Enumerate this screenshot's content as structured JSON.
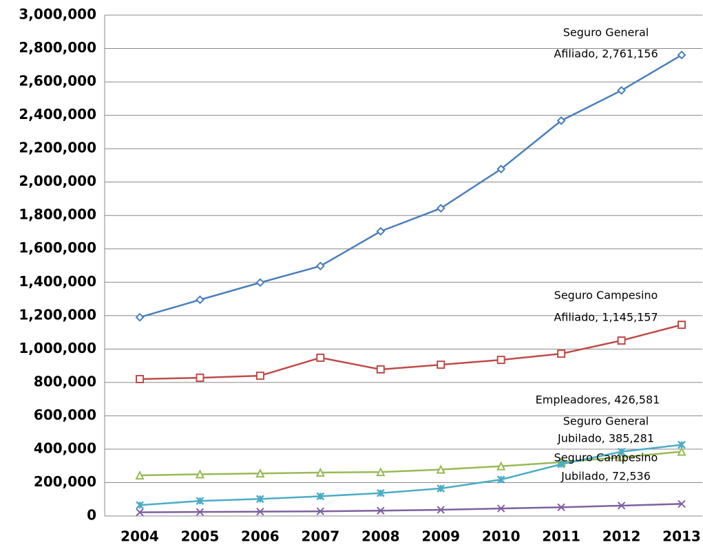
{
  "chart_data": {
    "type": "line",
    "categories": [
      "2004",
      "2005",
      "2006",
      "2007",
      "2008",
      "2009",
      "2010",
      "2011",
      "2012",
      "2013"
    ],
    "series": [
      {
        "color": "#4a7ebb",
        "marker": "diamond",
        "values": [
          1190000,
          1295000,
          1398000,
          1497000,
          1705000,
          1843000,
          2078000,
          2368000,
          2549000,
          2761156
        ]
      },
      {
        "color": "#be4b48",
        "marker": "square",
        "values": [
          820000,
          828000,
          840000,
          948000,
          878000,
          906000,
          935000,
          972000,
          1051000,
          1145157
        ]
      },
      {
        "color": "#98b954",
        "marker": "triangle",
        "values": [
          243000,
          250000,
          255000,
          260000,
          263000,
          278000,
          298000,
          322000,
          352000,
          385281
        ]
      },
      {
        "color": "#4bacc6",
        "marker": "star",
        "values": [
          65000,
          90000,
          102000,
          118000,
          137000,
          165000,
          218000,
          310000,
          385000,
          426581
        ]
      },
      {
        "color": "#7d60a0",
        "marker": "x",
        "values": [
          22000,
          24000,
          26000,
          28000,
          32000,
          37000,
          45000,
          52000,
          62000,
          72536
        ]
      }
    ],
    "annotations": [
      {
        "text": [
          "Seguro General",
          "Afiliado, 2,761,156"
        ]
      },
      {
        "text": [
          "Seguro Campesino",
          "Afiliado, 1,145,157"
        ]
      },
      {
        "text": [
          "Empleadores, 426,581"
        ]
      },
      {
        "text": [
          "Seguro General",
          "Jubilado, 385,281"
        ]
      },
      {
        "text": [
          "Seguro Campesino",
          "Jubilado, 72,536"
        ]
      }
    ],
    "ylim": [
      0,
      3000000
    ],
    "yticks": [
      {
        "value": 0,
        "label": "0"
      },
      {
        "value": 200000,
        "label": "200,000"
      },
      {
        "value": 400000,
        "label": "400,000"
      },
      {
        "value": 600000,
        "label": "600,000"
      },
      {
        "value": 800000,
        "label": "800,000"
      },
      {
        "value": 1000000,
        "label": "1,000,000"
      },
      {
        "value": 1200000,
        "label": "1,200,000"
      },
      {
        "value": 1400000,
        "label": "1,400,000"
      },
      {
        "value": 1600000,
        "label": "1,600,000"
      },
      {
        "value": 1800000,
        "label": "1,800,000"
      },
      {
        "value": 2000000,
        "label": "2,000,000"
      },
      {
        "value": 2200000,
        "label": "2,200,000"
      },
      {
        "value": 2400000,
        "label": "2,400,000"
      },
      {
        "value": 2600000,
        "label": "2,600,000"
      },
      {
        "value": 2800000,
        "label": "2,800,000"
      },
      {
        "value": 3000000,
        "label": "3,000,000"
      }
    ],
    "grid": true
  }
}
